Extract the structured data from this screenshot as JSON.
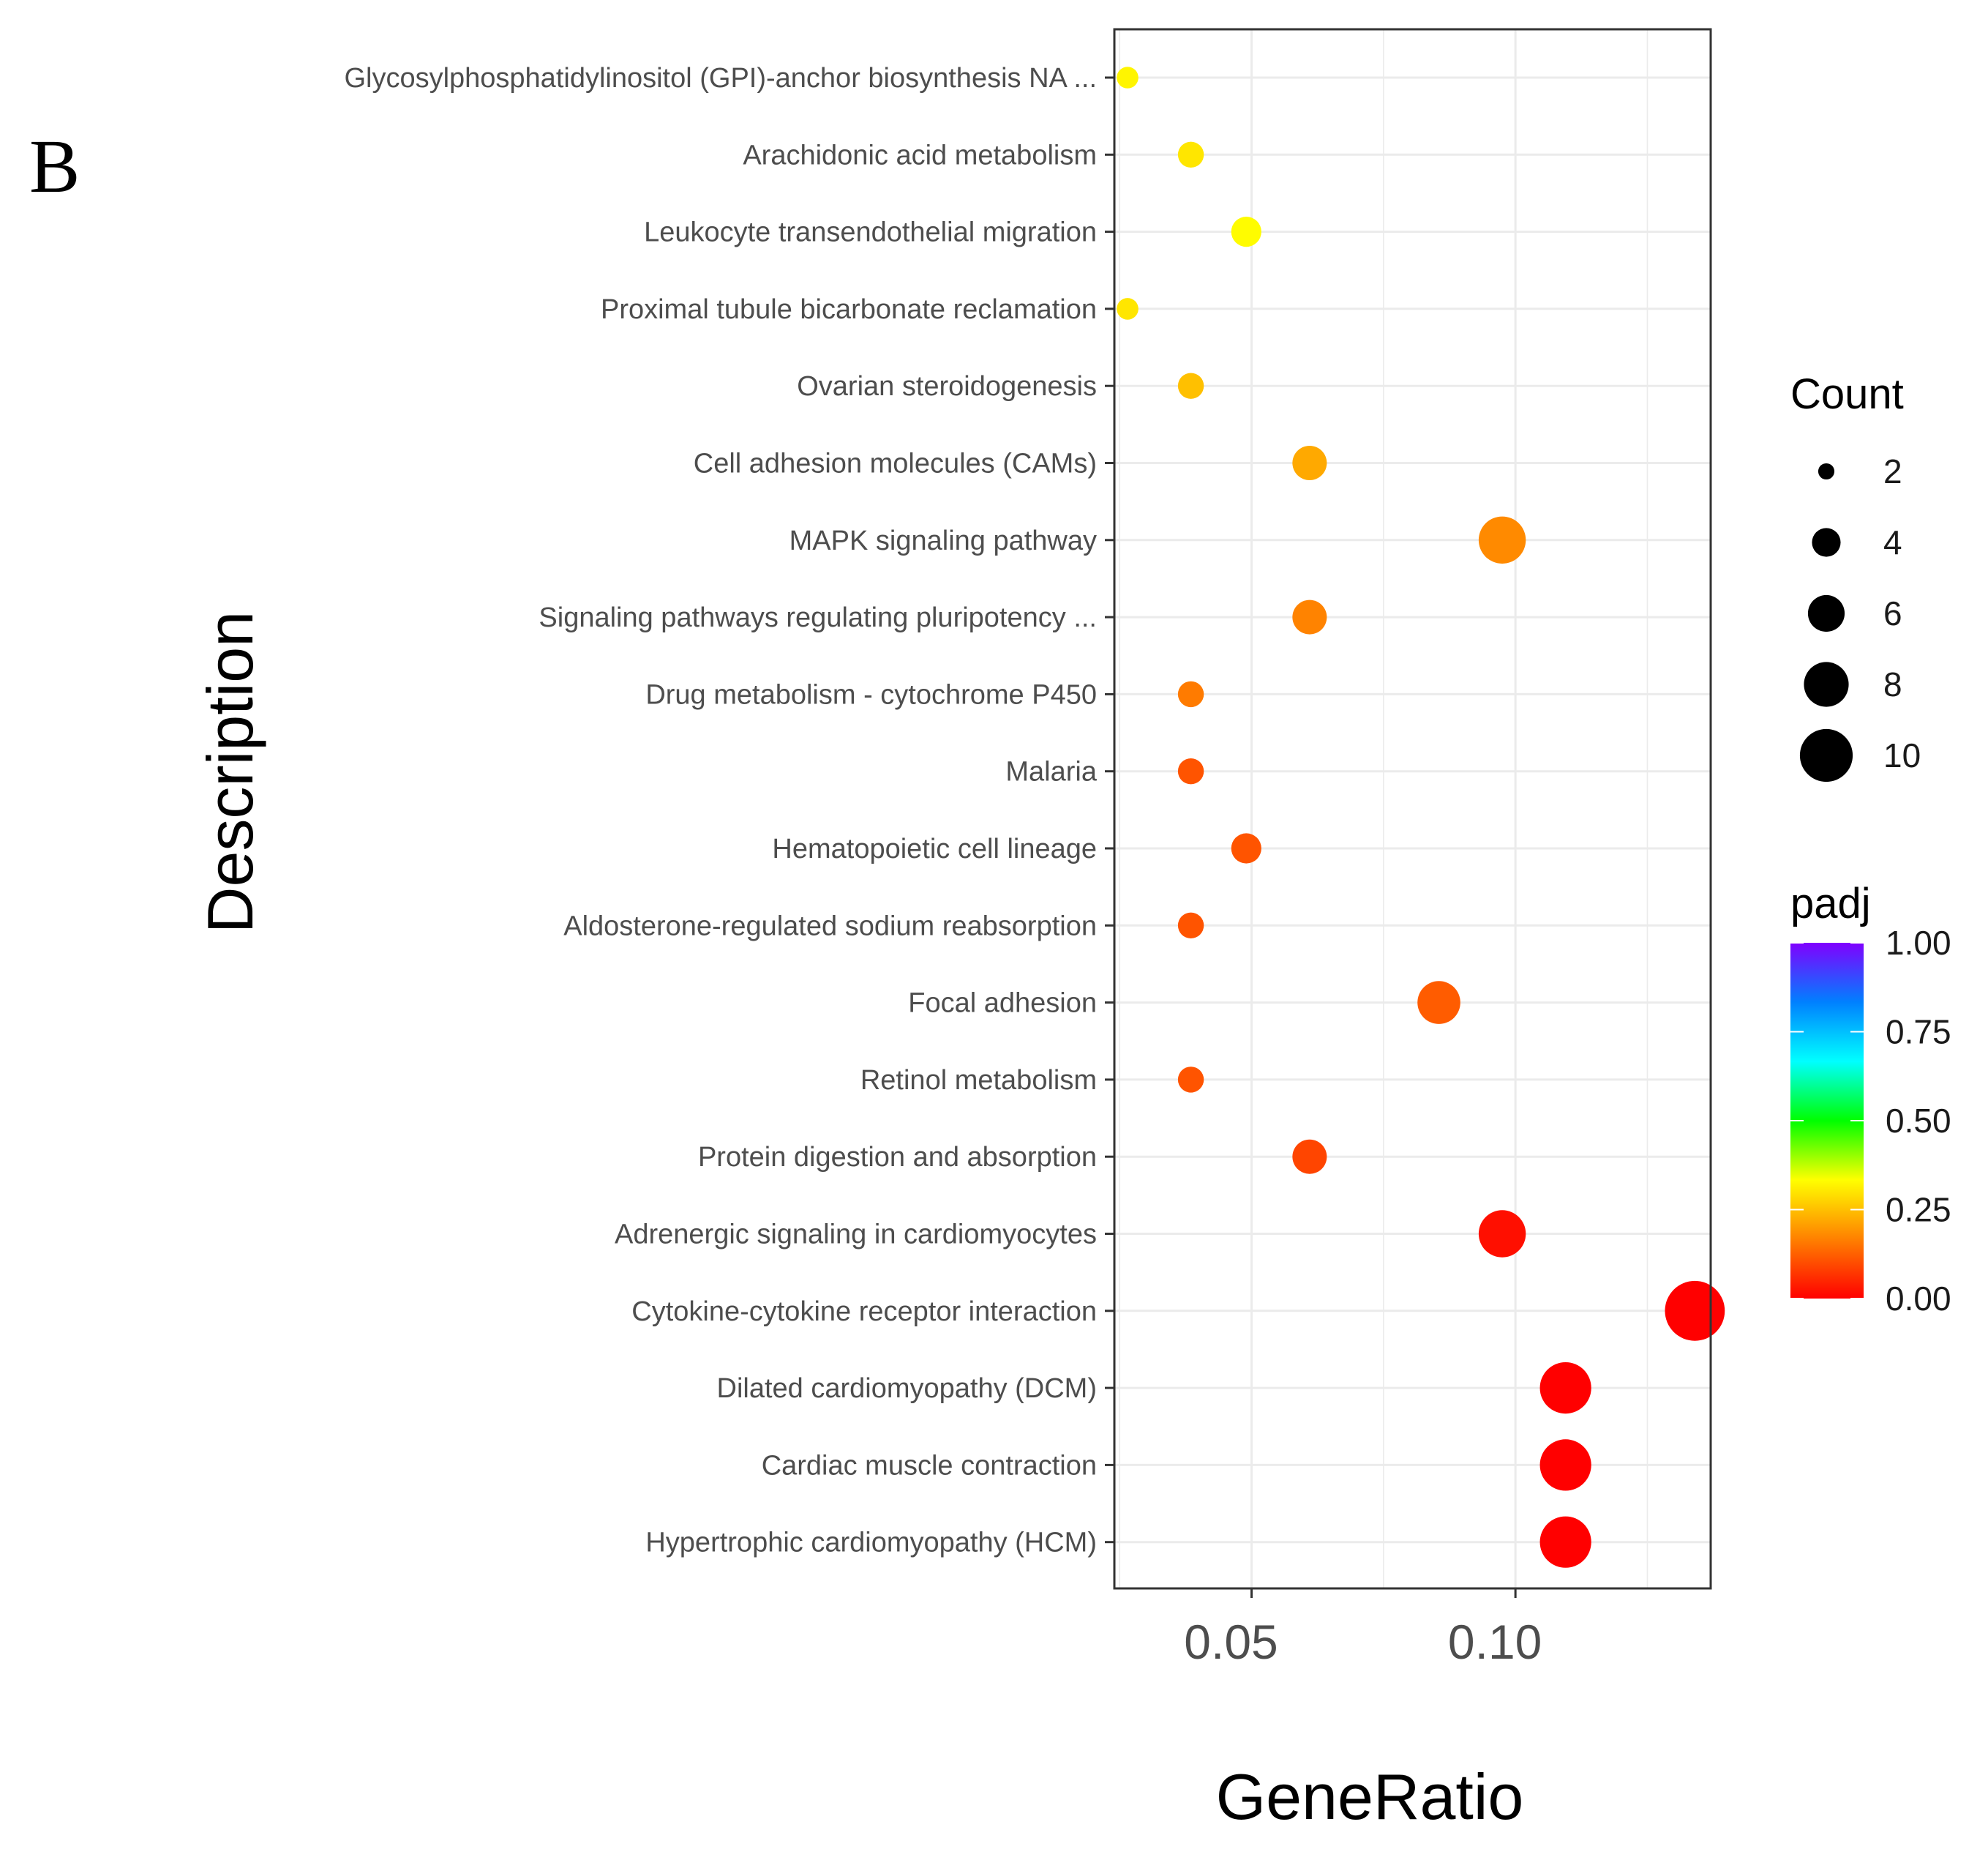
{
  "panel_label": "B",
  "chart_data": {
    "type": "scatter",
    "title": "",
    "xlabel": "GeneRatio",
    "ylabel": "Description",
    "xlim": [
      0.024,
      0.137
    ],
    "x_ticks": [
      0.05,
      0.1
    ],
    "x_tick_labels": [
      "0.05",
      "0.10"
    ],
    "grid": true,
    "categories": [
      "Glycosylphosphatidylinositol (GPI)-anchor biosynthesis NA ...",
      "Arachidonic acid metabolism",
      "Leukocyte transendothelial migration",
      "Proximal tubule bicarbonate reclamation",
      "Ovarian steroidogenesis",
      "Cell adhesion molecules (CAMs)",
      "MAPK signaling pathway",
      "Signaling pathways regulating pluripotency ...",
      "Drug metabolism - cytochrome P450",
      "Malaria",
      "Hematopoietic cell lineage",
      "Aldosterone-regulated sodium reabsorption",
      "Focal adhesion",
      "Retinol metabolism",
      "Protein digestion and absorption",
      "Adrenergic signaling in cardiomyocytes",
      "Cytokine-cytokine receptor interaction",
      "Dilated cardiomyopathy (DCM)",
      "Cardiac muscle contraction",
      "Hypertrophic cardiomyopathy (HCM)"
    ],
    "points": [
      {
        "category": "Glycosylphosphatidylinositol (GPI)-anchor biosynthesis NA ...",
        "gene_ratio": 0.0265,
        "count": 2,
        "padj": 0.32
      },
      {
        "category": "Arachidonic acid metabolism",
        "gene_ratio": 0.0385,
        "count": 3,
        "padj": 0.3
      },
      {
        "category": "Leukocyte transendothelial migration",
        "gene_ratio": 0.049,
        "count": 4,
        "padj": 0.33
      },
      {
        "category": "Proximal tubule bicarbonate reclamation",
        "gene_ratio": 0.0265,
        "count": 2,
        "padj": 0.3
      },
      {
        "category": "Ovarian steroidogenesis",
        "gene_ratio": 0.0385,
        "count": 3,
        "padj": 0.25
      },
      {
        "category": "Cell adhesion molecules (CAMs)",
        "gene_ratio": 0.061,
        "count": 5,
        "padj": 0.22
      },
      {
        "category": "MAPK signaling pathway",
        "gene_ratio": 0.0975,
        "count": 8,
        "padj": 0.18
      },
      {
        "category": "Signaling pathways regulating pluripotency ...",
        "gene_ratio": 0.061,
        "count": 5,
        "padj": 0.17
      },
      {
        "category": "Drug metabolism - cytochrome P450",
        "gene_ratio": 0.0385,
        "count": 3,
        "padj": 0.16
      },
      {
        "category": "Malaria",
        "gene_ratio": 0.0385,
        "count": 3,
        "padj": 0.11
      },
      {
        "category": "Hematopoietic cell lineage",
        "gene_ratio": 0.049,
        "count": 4,
        "padj": 0.11
      },
      {
        "category": "Aldosterone-regulated sodium reabsorption",
        "gene_ratio": 0.0385,
        "count": 3,
        "padj": 0.11
      },
      {
        "category": "Focal adhesion",
        "gene_ratio": 0.0855,
        "count": 7,
        "padj": 0.12
      },
      {
        "category": "Retinol metabolism",
        "gene_ratio": 0.0385,
        "count": 3,
        "padj": 0.11
      },
      {
        "category": "Protein digestion and absorption",
        "gene_ratio": 0.061,
        "count": 5,
        "padj": 0.09
      },
      {
        "category": "Adrenergic signaling in cardiomyocytes",
        "gene_ratio": 0.0975,
        "count": 8,
        "padj": 0.02
      },
      {
        "category": "Cytokine-cytokine receptor interaction",
        "gene_ratio": 0.134,
        "count": 11,
        "padj": 0.0
      },
      {
        "category": "Dilated cardiomyopathy (DCM)",
        "gene_ratio": 0.1095,
        "count": 9,
        "padj": 0.0
      },
      {
        "category": "Cardiac muscle contraction",
        "gene_ratio": 0.1095,
        "count": 9,
        "padj": 0.0
      },
      {
        "category": "Hypertrophic cardiomyopathy (HCM)",
        "gene_ratio": 0.1095,
        "count": 9,
        "padj": 0.0
      }
    ],
    "legend": {
      "size": {
        "title": "Count",
        "breaks": [
          2,
          4,
          6,
          8,
          10
        ],
        "labels": [
          "2",
          "4",
          "6",
          "8",
          "10"
        ]
      },
      "color": {
        "title": "padj",
        "range": [
          0.0,
          1.0
        ],
        "breaks": [
          1.0,
          0.75,
          0.5,
          0.25,
          0.0
        ],
        "labels": [
          "1.00",
          "0.75",
          "0.50",
          "0.25",
          "0.00"
        ],
        "gradient_stops": [
          "#ff0000",
          "#ff8000",
          "#ffff00",
          "#00ff00",
          "#00ffff",
          "#0080ff",
          "#8000ff"
        ]
      },
      "placement": "right"
    }
  }
}
